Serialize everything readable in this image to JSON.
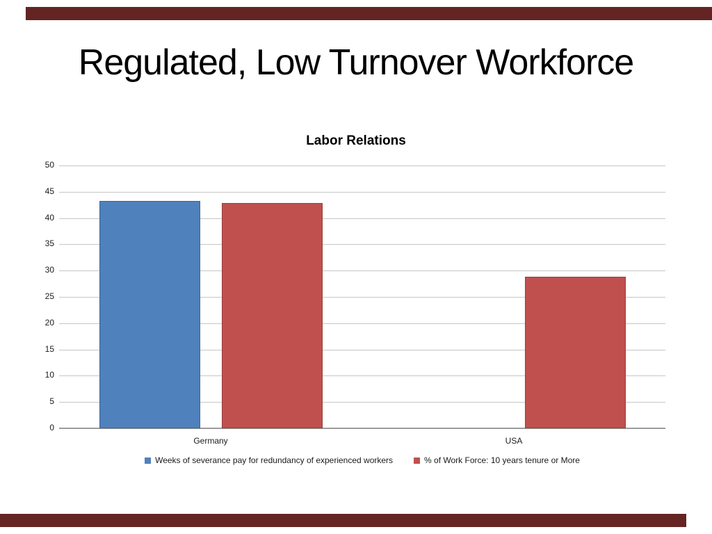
{
  "slide": {
    "title": "Regulated, Low Turnover Workforce"
  },
  "decor": {
    "bar_color": "#632423"
  },
  "chart_data": {
    "type": "bar",
    "title": "Labor Relations",
    "categories": [
      "Germany",
      "USA"
    ],
    "series": [
      {
        "name": "Weeks of severance pay for redundancy of experienced workers",
        "color": "#4f81bd",
        "values": [
          43.3,
          0
        ]
      },
      {
        "name": "% of Work Force: 10 years tenure or More",
        "color": "#c0504d",
        "values": [
          42.8,
          28.9
        ]
      }
    ],
    "xlabel": "",
    "ylabel": "",
    "ylim": [
      0,
      50
    ],
    "yticks": [
      0,
      5,
      10,
      15,
      20,
      25,
      30,
      35,
      40,
      45,
      50
    ],
    "grid": true,
    "legend_position": "bottom"
  }
}
